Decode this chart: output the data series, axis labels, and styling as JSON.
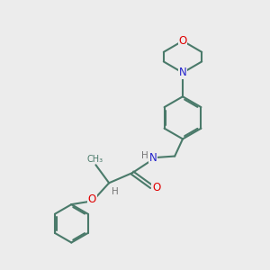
{
  "bg_color": "#ececec",
  "bond_color": "#4a7a6a",
  "bond_width": 1.5,
  "atom_colors": {
    "O": "#e00000",
    "N": "#2222cc",
    "H": "#777777",
    "C": "#4a7a6a"
  },
  "font_size": 8.5,
  "figsize": [
    3.0,
    3.0
  ],
  "dpi": 100,
  "scale": 1.0
}
